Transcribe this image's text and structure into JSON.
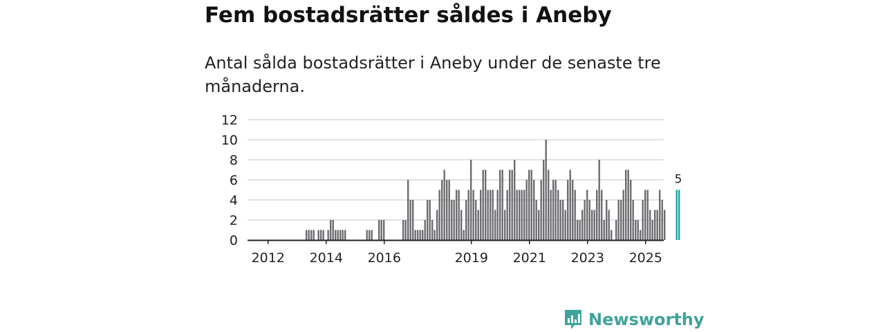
{
  "title": "Fem bostadsrätter såldes i Aneby",
  "subtitle": "Antal sålda bostadsrätter i Aneby under de senaste tre månaderna.",
  "brand": {
    "name": "Newsworthy",
    "color": "#3fa39c",
    "icon": "bar-chart-logo-icon"
  },
  "colors": {
    "bar": "#6b6b70",
    "highlight": "#1aa3a6",
    "grid": "#d9d9d9",
    "axis": "#222222"
  },
  "chart_data": {
    "type": "bar",
    "title": "Fem bostadsrätter såldes i Aneby",
    "subtitle": "Antal sålda bostadsrätter i Aneby under de senaste tre månaderna.",
    "xlabel": "",
    "ylabel": "",
    "ylim": [
      0,
      12
    ],
    "yticks": [
      "0",
      "2",
      "4",
      "6",
      "8",
      "10",
      "12"
    ],
    "xticks": [
      {
        "label": "2012",
        "month_index": 8
      },
      {
        "label": "2014",
        "month_index": 32
      },
      {
        "label": "2016",
        "month_index": 56
      },
      {
        "label": "2019",
        "month_index": 92
      },
      {
        "label": "2021",
        "month_index": 116
      },
      {
        "label": "2023",
        "month_index": 140
      },
      {
        "label": "2025",
        "month_index": 164
      }
    ],
    "start_month": "2011-05",
    "values": [
      0,
      0,
      0,
      0,
      0,
      0,
      0,
      0,
      0,
      0,
      0,
      0,
      0,
      0,
      0,
      0,
      0,
      0,
      0,
      0,
      0,
      0,
      0,
      0,
      1,
      1,
      1,
      1,
      0,
      1,
      1,
      1,
      0,
      1,
      2,
      2,
      1,
      1,
      1,
      1,
      1,
      0,
      0,
      0,
      0,
      0,
      0,
      0,
      0,
      1,
      1,
      1,
      0,
      0,
      2,
      2,
      2,
      0,
      0,
      0,
      0,
      0,
      0,
      0,
      2,
      2,
      6,
      4,
      4,
      1,
      1,
      1,
      1,
      2,
      4,
      4,
      2,
      1,
      3,
      5,
      6,
      7,
      6,
      6,
      4,
      4,
      5,
      5,
      3,
      1,
      4,
      5,
      8,
      5,
      4,
      3,
      5,
      7,
      7,
      5,
      5,
      5,
      3,
      5,
      7,
      7,
      3,
      5,
      7,
      7,
      8,
      5,
      5,
      5,
      5,
      6,
      7,
      7,
      6,
      4,
      3,
      6,
      8,
      10,
      7,
      5,
      6,
      6,
      5,
      4,
      4,
      3,
      6,
      7,
      6,
      5,
      2,
      2,
      3,
      4,
      5,
      4,
      3,
      3,
      5,
      8,
      5,
      2,
      4,
      3,
      1,
      0,
      2,
      4,
      4,
      5,
      7,
      7,
      6,
      4,
      2,
      2,
      1,
      4,
      5,
      5,
      3,
      2,
      3,
      3,
      5,
      4,
      3,
      0,
      0,
      0,
      0,
      5,
      5
    ],
    "highlight_last_label": "5",
    "highlight_last": true
  }
}
